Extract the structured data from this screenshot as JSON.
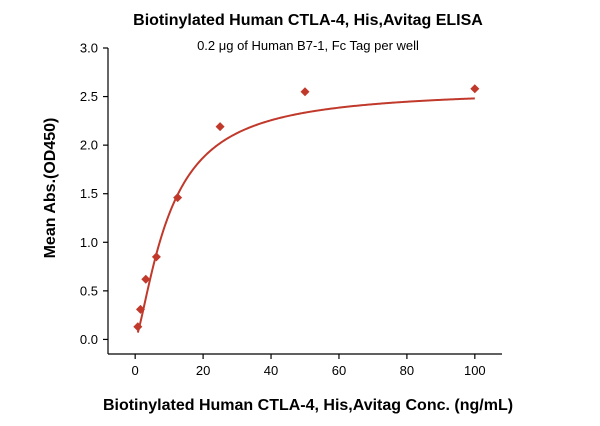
{
  "chart_data": {
    "type": "scatter",
    "title": "Biotinylated Human CTLA-4, His,Avitag ELISA",
    "subtitle": "0.2 μg of Human B7-1, Fc Tag per well",
    "xlabel": "Biotinylated Human CTLA-4, His,Avitag Conc. (ng/mL)",
    "ylabel": "Mean Abs.(OD450)",
    "xlim": [
      -8,
      108
    ],
    "ylim": [
      -0.15,
      3.0
    ],
    "xticks": [
      0,
      20,
      40,
      60,
      80,
      100
    ],
    "yticks": [
      0.0,
      0.5,
      1.0,
      1.5,
      2.0,
      2.5,
      3.0
    ],
    "xtick_labels": [
      "0",
      "20",
      "40",
      "60",
      "80",
      "100"
    ],
    "ytick_labels": [
      "0.0",
      "0.5",
      "1.0",
      "1.5",
      "2.0",
      "2.5",
      "3.0"
    ],
    "grid": false,
    "legend": "none",
    "series": [
      {
        "marker": "diamond",
        "color": "#c0392b",
        "x": [
          0.78,
          1.56,
          3.125,
          6.25,
          12.5,
          25,
          50,
          100
        ],
        "y": [
          0.13,
          0.31,
          0.62,
          0.85,
          1.46,
          2.19,
          2.55,
          2.58
        ]
      }
    ],
    "fit": {
      "type": "4PL",
      "color": "#c0392b",
      "bottom": 0.0,
      "top": 2.58,
      "ec50": 10.0,
      "hill": 1.4
    }
  }
}
